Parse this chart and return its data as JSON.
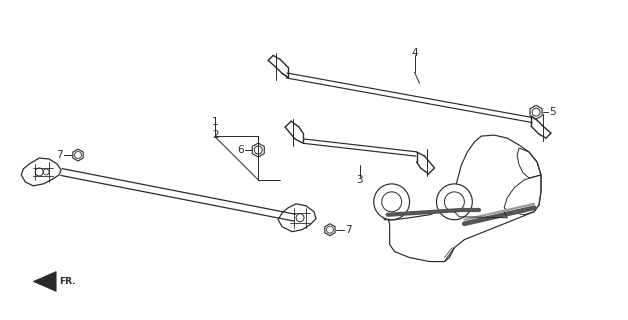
{
  "bg_color": "#ffffff",
  "line_color": "#2a2a2a",
  "fig_width": 6.28,
  "fig_height": 3.2,
  "dpi": 100
}
